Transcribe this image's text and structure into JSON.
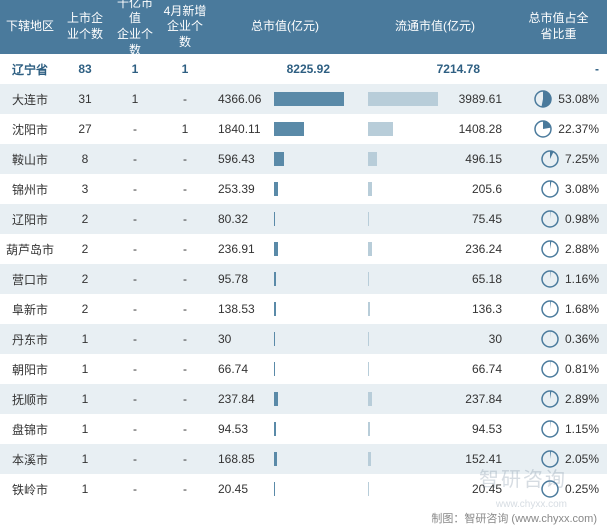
{
  "table": {
    "headers": {
      "region": "下辖地区",
      "company_count": "上市企\n业个数",
      "qianyi_count": "千亿市值\n企业个数",
      "april_new": "4月新增\n企业个数",
      "total_mv": "总市值(亿元)",
      "circ_mv": "流通市值(亿元)",
      "pct": "总市值占全\n省比重"
    },
    "summary": {
      "region": "辽宁省",
      "company_count": "83",
      "qianyi_count": "1",
      "april_new": "1",
      "total_mv": "8225.92",
      "circ_mv": "7214.78",
      "pct": "-"
    },
    "max_total_mv": 4366.06,
    "max_circ_mv": 3989.61,
    "rows": [
      {
        "region": "大连市",
        "company_count": "31",
        "qianyi_count": "1",
        "april_new": "-",
        "total_mv": "4366.06",
        "total_mv_num": 4366.06,
        "circ_mv": "3989.61",
        "circ_mv_num": 3989.61,
        "pct": "53.08%",
        "pct_num": 53.08
      },
      {
        "region": "沈阳市",
        "company_count": "27",
        "qianyi_count": "-",
        "april_new": "1",
        "total_mv": "1840.11",
        "total_mv_num": 1840.11,
        "circ_mv": "1408.28",
        "circ_mv_num": 1408.28,
        "pct": "22.37%",
        "pct_num": 22.37
      },
      {
        "region": "鞍山市",
        "company_count": "8",
        "qianyi_count": "-",
        "april_new": "-",
        "total_mv": "596.43",
        "total_mv_num": 596.43,
        "circ_mv": "496.15",
        "circ_mv_num": 496.15,
        "pct": "7.25%",
        "pct_num": 7.25
      },
      {
        "region": "锦州市",
        "company_count": "3",
        "qianyi_count": "-",
        "april_new": "-",
        "total_mv": "253.39",
        "total_mv_num": 253.39,
        "circ_mv": "205.6",
        "circ_mv_num": 205.6,
        "pct": "3.08%",
        "pct_num": 3.08
      },
      {
        "region": "辽阳市",
        "company_count": "2",
        "qianyi_count": "-",
        "april_new": "-",
        "total_mv": "80.32",
        "total_mv_num": 80.32,
        "circ_mv": "75.45",
        "circ_mv_num": 75.45,
        "pct": "0.98%",
        "pct_num": 0.98
      },
      {
        "region": "葫芦岛市",
        "company_count": "2",
        "qianyi_count": "-",
        "april_new": "-",
        "total_mv": "236.91",
        "total_mv_num": 236.91,
        "circ_mv": "236.24",
        "circ_mv_num": 236.24,
        "pct": "2.88%",
        "pct_num": 2.88
      },
      {
        "region": "营口市",
        "company_count": "2",
        "qianyi_count": "-",
        "april_new": "-",
        "total_mv": "95.78",
        "total_mv_num": 95.78,
        "circ_mv": "65.18",
        "circ_mv_num": 65.18,
        "pct": "1.16%",
        "pct_num": 1.16
      },
      {
        "region": "阜新市",
        "company_count": "2",
        "qianyi_count": "-",
        "april_new": "-",
        "total_mv": "138.53",
        "total_mv_num": 138.53,
        "circ_mv": "136.3",
        "circ_mv_num": 136.3,
        "pct": "1.68%",
        "pct_num": 1.68
      },
      {
        "region": "丹东市",
        "company_count": "1",
        "qianyi_count": "-",
        "april_new": "-",
        "total_mv": "30",
        "total_mv_num": 30,
        "circ_mv": "30",
        "circ_mv_num": 30,
        "pct": "0.36%",
        "pct_num": 0.36
      },
      {
        "region": "朝阳市",
        "company_count": "1",
        "qianyi_count": "-",
        "april_new": "-",
        "total_mv": "66.74",
        "total_mv_num": 66.74,
        "circ_mv": "66.74",
        "circ_mv_num": 66.74,
        "pct": "0.81%",
        "pct_num": 0.81
      },
      {
        "region": "抚顺市",
        "company_count": "1",
        "qianyi_count": "-",
        "april_new": "-",
        "total_mv": "237.84",
        "total_mv_num": 237.84,
        "circ_mv": "237.84",
        "circ_mv_num": 237.84,
        "pct": "2.89%",
        "pct_num": 2.89
      },
      {
        "region": "盘锦市",
        "company_count": "1",
        "qianyi_count": "-",
        "april_new": "-",
        "total_mv": "94.53",
        "total_mv_num": 94.53,
        "circ_mv": "94.53",
        "circ_mv_num": 94.53,
        "pct": "1.15%",
        "pct_num": 1.15
      },
      {
        "region": "本溪市",
        "company_count": "1",
        "qianyi_count": "-",
        "april_new": "-",
        "total_mv": "168.85",
        "total_mv_num": 168.85,
        "circ_mv": "152.41",
        "circ_mv_num": 152.41,
        "pct": "2.05%",
        "pct_num": 2.05
      },
      {
        "region": "铁岭市",
        "company_count": "1",
        "qianyi_count": "-",
        "april_new": "-",
        "total_mv": "20.45",
        "total_mv_num": 20.45,
        "circ_mv": "20.45",
        "circ_mv_num": 20.45,
        "pct": "0.25%",
        "pct_num": 0.25
      }
    ],
    "footer": "制图：智研咨询 (www.chyxx.com)",
    "watermark": "智研咨询",
    "sub_watermark": "www.chyxx.com"
  },
  "colors": {
    "header_bg": "#4a7a9c",
    "even_row": "#e8eff3",
    "bar1": "#5a8aa8",
    "bar2": "#b8cdd9",
    "summary_text": "#2e5f82",
    "pie_border": "#4a7a9c"
  }
}
